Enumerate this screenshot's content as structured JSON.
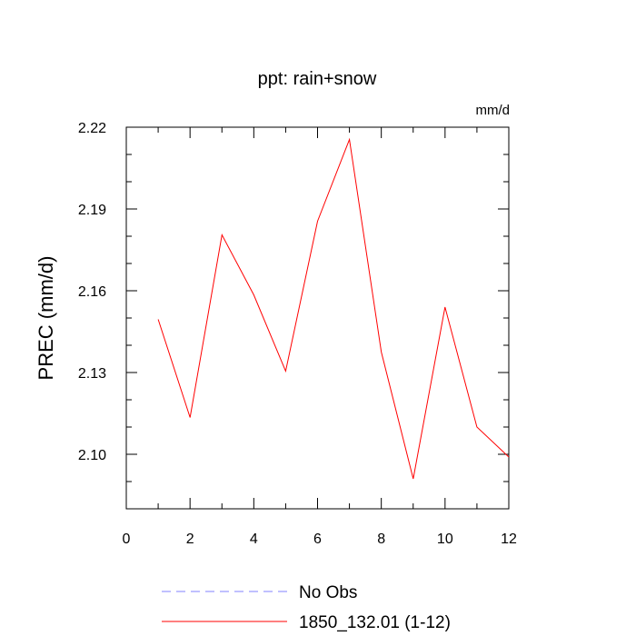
{
  "chart_data": {
    "type": "line",
    "title": "ppt: rain+snow",
    "units_label": "mm/d",
    "xlabel": "",
    "ylabel": "PREC  (mm/d)",
    "xlim": [
      0,
      12
    ],
    "ylim": [
      2.08,
      2.22
    ],
    "xticks": [
      0,
      2,
      4,
      6,
      8,
      10,
      12
    ],
    "xtick_labels": [
      "0",
      "2",
      "4",
      "6",
      "8",
      "10",
      "12"
    ],
    "yticks": [
      2.1,
      2.13,
      2.16,
      2.19,
      2.22
    ],
    "ytick_labels": [
      "2.10",
      "2.13",
      "2.16",
      "2.19",
      "2.22"
    ],
    "grid": false,
    "legend_position": "bottom",
    "series": [
      {
        "name": "1850_132.01 (1-12)",
        "color": "#ff0000",
        "dash": "solid",
        "x": [
          1,
          2,
          3,
          4,
          5,
          6,
          7,
          8,
          9,
          10,
          11,
          12
        ],
        "y": [
          2.1495,
          2.1135,
          2.1805,
          2.1585,
          2.1305,
          2.1855,
          2.2155,
          2.1375,
          2.091,
          2.154,
          2.11,
          2.099
        ]
      }
    ],
    "legend": [
      {
        "label": "No Obs",
        "color": "#8080ff",
        "dash": "dashed"
      },
      {
        "label": "1850_132.01 (1-12)",
        "color": "#ff0000",
        "dash": "solid"
      }
    ]
  }
}
